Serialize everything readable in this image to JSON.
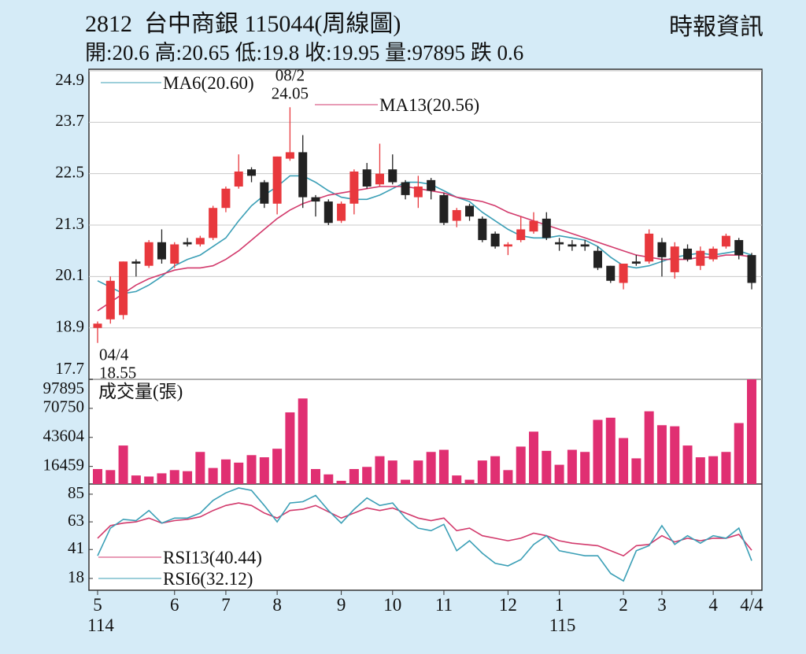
{
  "chart_data": [
    {
      "type": "candlestick",
      "title": "2812  台中商銀 115044(周線圖)",
      "subtitle": "開:20.6 高:20.65 低:19.8 收:19.95 量:97895 跌 0.6",
      "source": "時報資訊",
      "up_color": "#e8383d",
      "down_color": "#222222",
      "open": [
        18.9,
        19.1,
        19.2,
        20.45,
        20.35,
        20.9,
        20.4,
        20.9,
        20.85,
        21.0,
        21.7,
        22.2,
        22.6,
        22.3,
        21.8,
        22.85,
        23.0,
        21.95,
        21.85,
        21.4,
        21.8,
        22.6,
        22.25,
        22.6,
        22.3,
        21.95,
        22.35,
        22.0,
        21.4,
        21.75,
        21.45,
        21.1,
        20.8,
        20.95,
        21.15,
        21.45,
        20.9,
        20.85,
        20.85,
        20.7,
        20.35,
        19.95,
        20.45,
        20.45,
        20.9,
        20.2,
        20.75,
        20.35,
        20.5,
        20.8,
        20.95,
        20.6
      ],
      "high": [
        19.05,
        20.1,
        20.45,
        20.5,
        20.95,
        21.2,
        20.9,
        21.0,
        21.05,
        21.75,
        22.2,
        22.95,
        22.65,
        22.35,
        22.9,
        24.05,
        23.4,
        22.0,
        21.9,
        21.85,
        22.6,
        22.75,
        23.2,
        22.95,
        22.35,
        22.45,
        22.4,
        22.05,
        21.7,
        21.8,
        21.5,
        21.15,
        20.9,
        21.5,
        21.6,
        21.6,
        21.0,
        20.95,
        20.95,
        20.8,
        20.35,
        20.4,
        20.6,
        21.2,
        21.0,
        20.9,
        20.85,
        20.8,
        20.8,
        21.1,
        21.0,
        20.65
      ],
      "low": [
        18.55,
        19.0,
        19.1,
        20.1,
        20.3,
        20.4,
        20.3,
        20.8,
        20.8,
        20.95,
        21.6,
        22.15,
        22.3,
        21.7,
        21.55,
        22.8,
        21.7,
        21.5,
        21.3,
        21.35,
        21.55,
        22.15,
        22.2,
        22.25,
        21.9,
        21.7,
        21.9,
        21.3,
        21.25,
        21.4,
        20.9,
        20.75,
        20.6,
        20.9,
        21.1,
        20.95,
        20.7,
        20.7,
        20.7,
        20.25,
        19.95,
        19.8,
        20.35,
        20.4,
        20.1,
        20.05,
        20.45,
        20.25,
        20.45,
        20.75,
        20.5,
        19.8
      ],
      "close": [
        19.0,
        20.0,
        20.45,
        20.4,
        20.9,
        20.5,
        20.85,
        20.85,
        21.0,
        21.7,
        22.15,
        22.55,
        22.45,
        21.8,
        22.9,
        23.0,
        21.95,
        21.85,
        21.35,
        21.8,
        22.55,
        22.2,
        22.5,
        22.3,
        22.0,
        22.2,
        22.1,
        21.35,
        21.65,
        21.5,
        20.95,
        20.8,
        20.85,
        21.2,
        21.4,
        21.0,
        20.85,
        20.8,
        20.8,
        20.3,
        20.0,
        20.4,
        20.4,
        21.1,
        20.55,
        20.8,
        20.5,
        20.7,
        20.75,
        21.05,
        20.6,
        19.95
      ],
      "ylim": [
        17.7,
        24.9
      ],
      "yticks": [
        17.7,
        18.9,
        20.1,
        21.3,
        22.5,
        23.7,
        24.9
      ],
      "grid": true,
      "series": [
        {
          "name": "MA6(20.60)",
          "color": "#3b9fb6",
          "values": [
            20.0,
            19.85,
            19.7,
            19.75,
            19.9,
            20.1,
            20.35,
            20.5,
            20.6,
            20.8,
            21.0,
            21.4,
            21.75,
            22.0,
            22.2,
            22.45,
            22.45,
            22.3,
            22.1,
            21.95,
            21.9,
            21.9,
            22.0,
            22.15,
            22.3,
            22.3,
            22.25,
            22.1,
            21.95,
            21.85,
            21.6,
            21.4,
            21.2,
            21.05,
            21.0,
            21.0,
            21.05,
            21.0,
            20.95,
            20.8,
            20.55,
            20.35,
            20.3,
            20.35,
            20.45,
            20.55,
            20.6,
            20.65,
            20.6,
            20.65,
            20.7,
            20.6
          ]
        },
        {
          "name": "MA13(20.56)",
          "color": "#d23a6c",
          "values": [
            19.3,
            19.5,
            19.7,
            19.9,
            20.05,
            20.15,
            20.25,
            20.3,
            20.3,
            20.35,
            20.5,
            20.7,
            20.95,
            21.2,
            21.45,
            21.65,
            21.8,
            21.9,
            22.0,
            22.05,
            22.1,
            22.15,
            22.2,
            22.2,
            22.2,
            22.15,
            22.1,
            22.05,
            21.95,
            21.9,
            21.85,
            21.75,
            21.6,
            21.5,
            21.4,
            21.3,
            21.2,
            21.1,
            21.0,
            20.9,
            20.8,
            20.7,
            20.6,
            20.55,
            20.5,
            20.5,
            20.5,
            20.55,
            20.55,
            20.6,
            20.6,
            20.56
          ]
        }
      ],
      "annotations": [
        {
          "date": "08/2",
          "value": 24.05
        },
        {
          "date": "04/4",
          "value": 18.55
        }
      ]
    },
    {
      "type": "bar",
      "name": "成交量(張)",
      "color": "#e02f72",
      "values": [
        14000,
        13000,
        36000,
        8000,
        7000,
        10000,
        13000,
        12000,
        30000,
        15000,
        23000,
        20000,
        27000,
        25000,
        33000,
        67000,
        80000,
        14000,
        9000,
        3000,
        14000,
        16000,
        26000,
        22000,
        4000,
        22000,
        30000,
        32000,
        8000,
        4000,
        22000,
        26000,
        13000,
        35000,
        49000,
        31000,
        18000,
        32000,
        30000,
        60000,
        62000,
        43000,
        24000,
        68000,
        55000,
        54000,
        36000,
        25000,
        26000,
        30000,
        57000,
        97895
      ],
      "ylim": [
        0,
        97895
      ],
      "yticks": [
        16459,
        43604,
        70750,
        97895
      ]
    },
    {
      "type": "line",
      "series": [
        {
          "name": "RSI13(40.44)",
          "color": "#d23a6c",
          "values": [
            50,
            60,
            62,
            63,
            66,
            62,
            64,
            65,
            67,
            72,
            76,
            78,
            76,
            70,
            66,
            72,
            73,
            76,
            71,
            66,
            70,
            74,
            72,
            74,
            70,
            66,
            64,
            66,
            56,
            58,
            52,
            50,
            48,
            50,
            54,
            52,
            48,
            46,
            45,
            44,
            40,
            36,
            44,
            45,
            52,
            47,
            50,
            48,
            50,
            50,
            53,
            40.44
          ]
        },
        {
          "name": "RSI6(32.12)",
          "color": "#3b9fb6",
          "values": [
            36,
            58,
            65,
            64,
            72,
            62,
            66,
            66,
            70,
            80,
            86,
            90,
            88,
            76,
            63,
            78,
            79,
            84,
            72,
            62,
            73,
            82,
            76,
            78,
            66,
            58,
            56,
            61,
            40,
            48,
            38,
            30,
            28,
            33,
            45,
            52,
            40,
            38,
            36,
            36,
            22,
            16,
            40,
            44,
            60,
            45,
            52,
            46,
            52,
            50,
            58,
            32.12
          ]
        }
      ],
      "ylim": [
        8.6,
        93.1
      ],
      "yticks": [
        18,
        41,
        63,
        85
      ],
      "xticks": [
        {
          "value": 0,
          "label": "5"
        },
        {
          "value": 6,
          "label": "6"
        },
        {
          "value": 10,
          "label": "7"
        },
        {
          "value": 14,
          "label": "8"
        },
        {
          "value": 19,
          "label": "9"
        },
        {
          "value": 23,
          "label": "10"
        },
        {
          "value": 27,
          "label": "11"
        },
        {
          "value": 32,
          "label": "12"
        },
        {
          "value": 36,
          "label": "1"
        },
        {
          "value": 41,
          "label": "2"
        },
        {
          "value": 44,
          "label": "3"
        },
        {
          "value": 48,
          "label": "4"
        },
        {
          "value": 51,
          "label": "4/4"
        }
      ],
      "year_labels": [
        {
          "value": 0,
          "label": "114"
        },
        {
          "value": 36,
          "label": "115"
        }
      ]
    }
  ]
}
